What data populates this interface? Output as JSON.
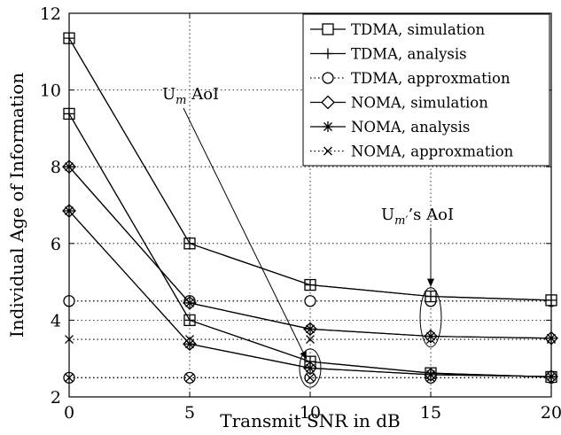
{
  "chart_data": {
    "type": "line",
    "xlabel": "Transmit SNR in dB",
    "ylabel": "Individual Age of Information",
    "xlim": [
      0,
      20
    ],
    "ylim": [
      2,
      12
    ],
    "xticks": [
      0,
      5,
      10,
      15,
      20
    ],
    "yticks": [
      2,
      4,
      6,
      8,
      10,
      12
    ],
    "xtick_labels": [
      "0",
      "5",
      "10",
      "15",
      "20"
    ],
    "ytick_labels": [
      "2",
      "4",
      "6",
      "8",
      "10",
      "12"
    ],
    "grid": true,
    "legend_position": "top-right",
    "x": [
      0,
      5,
      10,
      15,
      20
    ],
    "series": [
      {
        "name": "TDMA, simulation",
        "marker": "square",
        "linestyle": "solid",
        "values": [
          11.35,
          6.0,
          4.92,
          4.62,
          4.52
        ]
      },
      {
        "name": "TDMA, simulation",
        "marker": "square",
        "linestyle": "solid",
        "values": [
          9.38,
          4.0,
          2.92,
          2.62,
          2.52
        ]
      },
      {
        "name": "TDMA, analysis",
        "marker": "plus",
        "linestyle": "solid",
        "values": [
          11.35,
          6.0,
          4.92,
          4.62,
          4.52
        ]
      },
      {
        "name": "TDMA, analysis",
        "marker": "plus",
        "linestyle": "solid",
        "values": [
          9.38,
          4.0,
          2.92,
          2.62,
          2.52
        ]
      },
      {
        "name": "TDMA, approxmation",
        "marker": "circle",
        "linestyle": "dotted",
        "values": [
          4.5,
          4.5,
          4.5,
          4.5,
          4.5
        ]
      },
      {
        "name": "TDMA, approxmation",
        "marker": "circle",
        "linestyle": "dotted",
        "values": [
          2.5,
          2.5,
          2.5,
          2.5,
          2.5
        ]
      },
      {
        "name": "NOMA, simulation",
        "marker": "diamond",
        "linestyle": "solid",
        "values": [
          8.0,
          4.45,
          3.77,
          3.58,
          3.53
        ]
      },
      {
        "name": "NOMA, simulation",
        "marker": "diamond",
        "linestyle": "solid",
        "values": [
          6.85,
          3.38,
          2.75,
          2.58,
          2.53
        ]
      },
      {
        "name": "NOMA, analysis",
        "marker": "asterisk",
        "linestyle": "solid",
        "values": [
          8.0,
          4.45,
          3.77,
          3.58,
          3.53
        ]
      },
      {
        "name": "NOMA, analysis",
        "marker": "asterisk",
        "linestyle": "solid",
        "values": [
          6.85,
          3.38,
          2.75,
          2.58,
          2.53
        ]
      },
      {
        "name": "NOMA, approxmation",
        "marker": "x",
        "linestyle": "dotted",
        "values": [
          3.5,
          3.5,
          3.5,
          3.5,
          3.5
        ]
      },
      {
        "name": "NOMA, approxmation",
        "marker": "x",
        "linestyle": "dotted",
        "values": [
          2.5,
          2.5,
          2.5,
          2.5,
          2.5
        ]
      }
    ],
    "legend": [
      {
        "label": "TDMA, simulation",
        "marker": "square",
        "linestyle": "solid"
      },
      {
        "label": "TDMA, analysis",
        "marker": "plus",
        "linestyle": "solid"
      },
      {
        "label": "TDMA, approxmation",
        "marker": "circle",
        "linestyle": "dotted"
      },
      {
        "label": "NOMA, simulation",
        "marker": "diamond",
        "linestyle": "solid"
      },
      {
        "label": "NOMA, analysis",
        "marker": "asterisk",
        "linestyle": "solid"
      },
      {
        "label": "NOMA, approxmation",
        "marker": "x",
        "linestyle": "dotted"
      }
    ],
    "annotations": [
      {
        "base": "U",
        "sub": "m",
        "suffix": " AoI",
        "target_x": 10,
        "ellipse_y": [
          2.25,
          3.25
        ]
      },
      {
        "base": "U",
        "sub": "m′",
        "suffix": "’s AoI",
        "target_x": 15,
        "ellipse_y": [
          3.3,
          4.85
        ]
      }
    ]
  }
}
